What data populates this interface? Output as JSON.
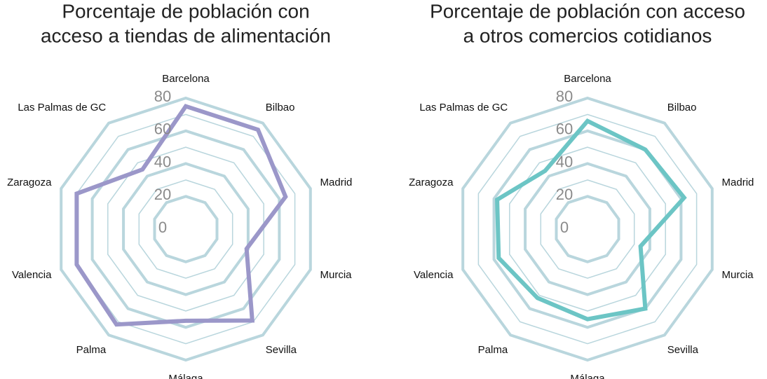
{
  "chart_data": [
    {
      "type": "radar",
      "title": [
        "Porcentaje de población con",
        "acceso a tiendas de alimentación"
      ],
      "categories": [
        "Barcelona",
        "Bilbao",
        "Madrid",
        "Murcia",
        "Sevilla",
        "Málaga",
        "Palma",
        "Valencia",
        "Zaragoza",
        "Las Palmas de GC"
      ],
      "values": [
        75,
        75,
        64,
        39,
        69,
        56,
        72,
        70,
        70,
        45
      ],
      "color": "#9b97c9",
      "ylim": [
        0,
        80
      ],
      "yticks": [
        0,
        20,
        40,
        60,
        80
      ],
      "minor_yticks": [
        30,
        50,
        70
      ],
      "grid": true
    },
    {
      "type": "radar",
      "title": [
        "Porcentaje de población con acceso",
        "a otros comercios cotidianos"
      ],
      "categories": [
        "Barcelona",
        "Bilbao",
        "Madrid",
        "Murcia",
        "Sevilla",
        "Málaga",
        "Palma",
        "Valencia",
        "Zaragoza",
        "Las Palmas de GC"
      ],
      "values": [
        66,
        60,
        62,
        34,
        60,
        55,
        52,
        57,
        58,
        44
      ],
      "color": "#6cc5c5",
      "ylim": [
        0,
        80
      ],
      "yticks": [
        0,
        20,
        40,
        60,
        80
      ],
      "minor_yticks": [
        30,
        50,
        70
      ],
      "grid": true
    }
  ]
}
